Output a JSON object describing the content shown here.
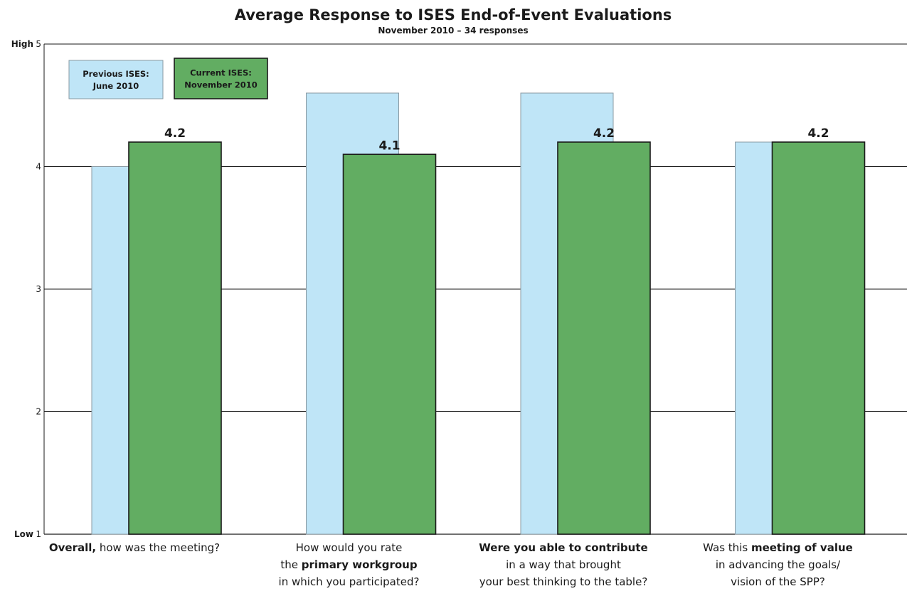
{
  "chart_data": {
    "type": "bar",
    "title": "Average Response to ISES End-of-Event Evaluations",
    "subtitle": "November 2010 – 34 responses",
    "ylim": [
      1,
      5
    ],
    "yticks": [
      1,
      2,
      3,
      4,
      5
    ],
    "ytick_words": {
      "high": "High",
      "low": "Low"
    },
    "grid": true,
    "legend_position": "top-left",
    "categories": [
      {
        "lines": [
          [
            {
              "t": "Overall,",
              "b": true
            },
            {
              "t": " how was the meeting?",
              "b": false
            }
          ]
        ]
      },
      {
        "lines": [
          [
            {
              "t": "How would you rate",
              "b": false
            }
          ],
          [
            {
              "t": "the ",
              "b": false
            },
            {
              "t": "primary workgroup",
              "b": true
            }
          ],
          [
            {
              "t": "in which you participated?",
              "b": false
            }
          ]
        ]
      },
      {
        "lines": [
          [
            {
              "t": "Were you able to contribute",
              "b": true
            }
          ],
          [
            {
              "t": "in a way that brought",
              "b": false
            }
          ],
          [
            {
              "t": "your best thinking to the table?",
              "b": false
            }
          ]
        ]
      },
      {
        "lines": [
          [
            {
              "t": "Was this ",
              "b": false
            },
            {
              "t": "meeting of value",
              "b": true
            }
          ],
          [
            {
              "t": "in advancing the goals/",
              "b": false
            }
          ],
          [
            {
              "t": "vision of the SPP?",
              "b": false
            }
          ]
        ]
      }
    ],
    "series": [
      {
        "name": "Previous ISES: June 2010",
        "legend_lines": [
          "Previous ISES:",
          "June 2010"
        ],
        "color": "#bfe5f7",
        "stroke": "#8a9aa3",
        "values": [
          4.0,
          4.6,
          4.6,
          4.2
        ],
        "show_labels": false
      },
      {
        "name": "Current ISES: November 2010",
        "legend_lines": [
          "Current ISES:",
          "November 2010"
        ],
        "color": "#62ad62",
        "stroke": "#1a1a1a",
        "values": [
          4.2,
          4.1,
          4.2,
          4.2
        ],
        "labels": [
          "4.2",
          "4.1",
          "4.2",
          "4.2"
        ],
        "show_labels": true
      }
    ]
  }
}
